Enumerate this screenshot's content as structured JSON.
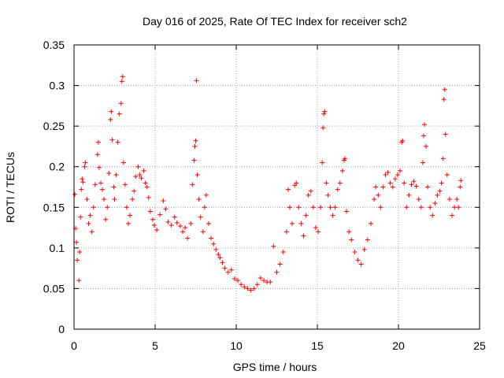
{
  "chart_data": {
    "type": "scatter",
    "title": "Day 016 of 2025, Rate Of TEC Index for receiver sch2",
    "xlabel": "GPS time / hours",
    "ylabel": "ROTI / TECUs",
    "xlim": [
      0,
      25
    ],
    "ylim": [
      0,
      0.35
    ],
    "xticks": [
      "0",
      "5",
      "10",
      "15",
      "20",
      "25"
    ],
    "yticks": [
      "0",
      "0.05",
      "0.1",
      "0.15",
      "0.2",
      "0.25",
      "0.3",
      "0.35"
    ],
    "grid": true,
    "marker": "+",
    "color": "#ff0000",
    "series": [
      {
        "points": [
          [
            0.05,
            0.166
          ],
          [
            0.1,
            0.124
          ],
          [
            0.15,
            0.107
          ],
          [
            0.2,
            0.085
          ],
          [
            0.3,
            0.06
          ],
          [
            0.35,
            0.095
          ],
          [
            0.4,
            0.138
          ],
          [
            0.45,
            0.172
          ],
          [
            0.5,
            0.185
          ],
          [
            0.55,
            0.181
          ],
          [
            0.65,
            0.2
          ],
          [
            0.7,
            0.205
          ],
          [
            0.8,
            0.16
          ],
          [
            0.9,
            0.13
          ],
          [
            1.0,
            0.14
          ],
          [
            1.1,
            0.12
          ],
          [
            1.2,
            0.15
          ],
          [
            1.3,
            0.178
          ],
          [
            1.45,
            0.215
          ],
          [
            1.5,
            0.23
          ],
          [
            1.55,
            0.199
          ],
          [
            1.65,
            0.18
          ],
          [
            1.75,
            0.172
          ],
          [
            1.85,
            0.16
          ],
          [
            1.95,
            0.135
          ],
          [
            2.05,
            0.15
          ],
          [
            2.15,
            0.192
          ],
          [
            2.25,
            0.258
          ],
          [
            2.3,
            0.268
          ],
          [
            2.35,
            0.233
          ],
          [
            2.45,
            0.175
          ],
          [
            2.5,
            0.16
          ],
          [
            2.6,
            0.19
          ],
          [
            2.7,
            0.23
          ],
          [
            2.8,
            0.265
          ],
          [
            2.9,
            0.278
          ],
          [
            2.95,
            0.305
          ],
          [
            3.0,
            0.311
          ],
          [
            3.05,
            0.205
          ],
          [
            3.15,
            0.178
          ],
          [
            3.25,
            0.15
          ],
          [
            3.35,
            0.13
          ],
          [
            3.45,
            0.14
          ],
          [
            3.6,
            0.16
          ],
          [
            3.7,
            0.17
          ],
          [
            3.8,
            0.188
          ],
          [
            3.95,
            0.2
          ],
          [
            4.05,
            0.19
          ],
          [
            4.15,
            0.186
          ],
          [
            4.3,
            0.195
          ],
          [
            4.4,
            0.18
          ],
          [
            4.5,
            0.175
          ],
          [
            4.6,
            0.162
          ],
          [
            4.7,
            0.145
          ],
          [
            4.85,
            0.135
          ],
          [
            4.95,
            0.128
          ],
          [
            5.1,
            0.122
          ],
          [
            5.3,
            0.141
          ],
          [
            5.5,
            0.158
          ],
          [
            5.65,
            0.148
          ],
          [
            5.8,
            0.132
          ],
          [
            6.0,
            0.128
          ],
          [
            6.2,
            0.138
          ],
          [
            6.35,
            0.131
          ],
          [
            6.55,
            0.127
          ],
          [
            6.7,
            0.12
          ],
          [
            6.85,
            0.125
          ],
          [
            7.0,
            0.112
          ],
          [
            7.2,
            0.13
          ],
          [
            7.3,
            0.178
          ],
          [
            7.4,
            0.208
          ],
          [
            7.45,
            0.225
          ],
          [
            7.5,
            0.232
          ],
          [
            7.55,
            0.306
          ],
          [
            7.6,
            0.19
          ],
          [
            7.7,
            0.16
          ],
          [
            7.8,
            0.138
          ],
          [
            7.95,
            0.12
          ],
          [
            8.05,
            0.15
          ],
          [
            8.15,
            0.165
          ],
          [
            8.3,
            0.13
          ],
          [
            8.45,
            0.112
          ],
          [
            8.6,
            0.105
          ],
          [
            8.75,
            0.098
          ],
          [
            8.9,
            0.092
          ],
          [
            9.0,
            0.088
          ],
          [
            9.15,
            0.082
          ],
          [
            9.3,
            0.075
          ],
          [
            9.5,
            0.07
          ],
          [
            9.7,
            0.073
          ],
          [
            9.9,
            0.062
          ],
          [
            10.1,
            0.06
          ],
          [
            10.3,
            0.055
          ],
          [
            10.5,
            0.052
          ],
          [
            10.7,
            0.05
          ],
          [
            10.9,
            0.048
          ],
          [
            11.1,
            0.05
          ],
          [
            11.3,
            0.055
          ],
          [
            11.5,
            0.063
          ],
          [
            11.7,
            0.06
          ],
          [
            11.9,
            0.058
          ],
          [
            12.1,
            0.058
          ],
          [
            12.3,
            0.102
          ],
          [
            12.5,
            0.07
          ],
          [
            12.7,
            0.08
          ],
          [
            12.9,
            0.095
          ],
          [
            13.1,
            0.12
          ],
          [
            13.2,
            0.172
          ],
          [
            13.3,
            0.15
          ],
          [
            13.45,
            0.13
          ],
          [
            13.6,
            0.177
          ],
          [
            13.7,
            0.18
          ],
          [
            13.85,
            0.15
          ],
          [
            14.0,
            0.13
          ],
          [
            14.15,
            0.115
          ],
          [
            14.3,
            0.14
          ],
          [
            14.45,
            0.165
          ],
          [
            14.6,
            0.17
          ],
          [
            14.75,
            0.15
          ],
          [
            14.9,
            0.125
          ],
          [
            15.05,
            0.12
          ],
          [
            15.2,
            0.15
          ],
          [
            15.3,
            0.205
          ],
          [
            15.35,
            0.248
          ],
          [
            15.4,
            0.265
          ],
          [
            15.45,
            0.268
          ],
          [
            15.55,
            0.18
          ],
          [
            15.65,
            0.165
          ],
          [
            15.8,
            0.15
          ],
          [
            15.95,
            0.14
          ],
          [
            16.1,
            0.15
          ],
          [
            16.25,
            0.172
          ],
          [
            16.4,
            0.18
          ],
          [
            16.55,
            0.195
          ],
          [
            16.65,
            0.208
          ],
          [
            16.7,
            0.21
          ],
          [
            16.8,
            0.145
          ],
          [
            16.95,
            0.12
          ],
          [
            17.1,
            0.11
          ],
          [
            17.3,
            0.095
          ],
          [
            17.5,
            0.085
          ],
          [
            17.7,
            0.08
          ],
          [
            17.9,
            0.098
          ],
          [
            18.1,
            0.11
          ],
          [
            18.3,
            0.13
          ],
          [
            18.5,
            0.16
          ],
          [
            18.6,
            0.175
          ],
          [
            18.75,
            0.165
          ],
          [
            18.9,
            0.15
          ],
          [
            19.05,
            0.175
          ],
          [
            19.2,
            0.19
          ],
          [
            19.35,
            0.193
          ],
          [
            19.5,
            0.18
          ],
          [
            19.65,
            0.175
          ],
          [
            19.8,
            0.185
          ],
          [
            19.95,
            0.19
          ],
          [
            20.1,
            0.195
          ],
          [
            20.2,
            0.23
          ],
          [
            20.25,
            0.232
          ],
          [
            20.35,
            0.18
          ],
          [
            20.5,
            0.15
          ],
          [
            20.65,
            0.165
          ],
          [
            20.8,
            0.178
          ],
          [
            20.95,
            0.182
          ],
          [
            21.1,
            0.176
          ],
          [
            21.25,
            0.16
          ],
          [
            21.4,
            0.15
          ],
          [
            21.5,
            0.205
          ],
          [
            21.55,
            0.238
          ],
          [
            21.6,
            0.252
          ],
          [
            21.7,
            0.225
          ],
          [
            21.8,
            0.175
          ],
          [
            21.95,
            0.15
          ],
          [
            22.1,
            0.14
          ],
          [
            22.25,
            0.155
          ],
          [
            22.4,
            0.165
          ],
          [
            22.55,
            0.17
          ],
          [
            22.65,
            0.18
          ],
          [
            22.75,
            0.21
          ],
          [
            22.8,
            0.283
          ],
          [
            22.85,
            0.295
          ],
          [
            22.9,
            0.24
          ],
          [
            23.0,
            0.19
          ],
          [
            23.15,
            0.16
          ],
          [
            23.3,
            0.14
          ],
          [
            23.45,
            0.15
          ],
          [
            23.6,
            0.16
          ],
          [
            23.7,
            0.15
          ],
          [
            23.8,
            0.175
          ],
          [
            23.85,
            0.183
          ]
        ]
      }
    ]
  }
}
